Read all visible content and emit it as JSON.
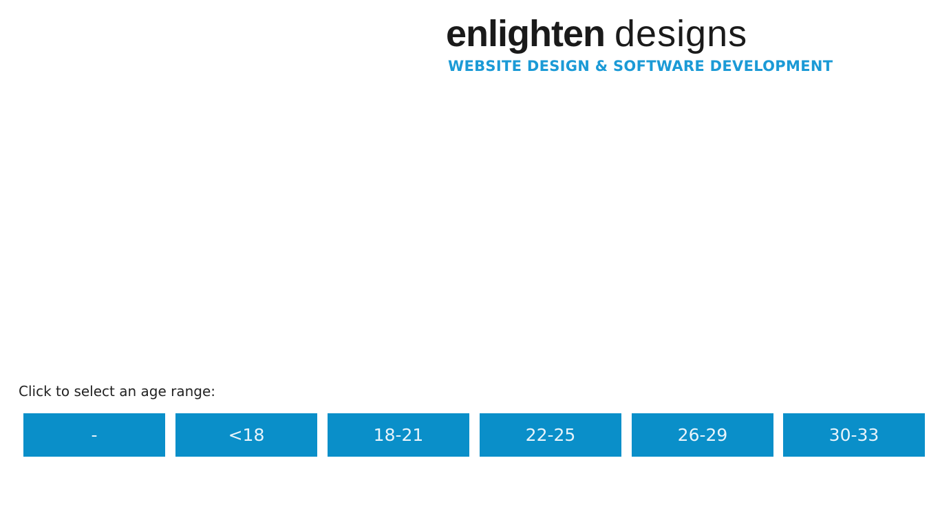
{
  "logo": {
    "brand_bold": "enlighten",
    "brand_light": "designs",
    "tagline": "WEBSITE DESIGN & SOFTWARE DEVELOPMENT"
  },
  "prompt": "Click to select an age range:",
  "age_ranges": [
    "-",
    "<18",
    "18-21",
    "22-25",
    "26-29",
    "30-33"
  ],
  "colors": {
    "button": "#0a8fc9",
    "accent": "#1b9ad6"
  }
}
